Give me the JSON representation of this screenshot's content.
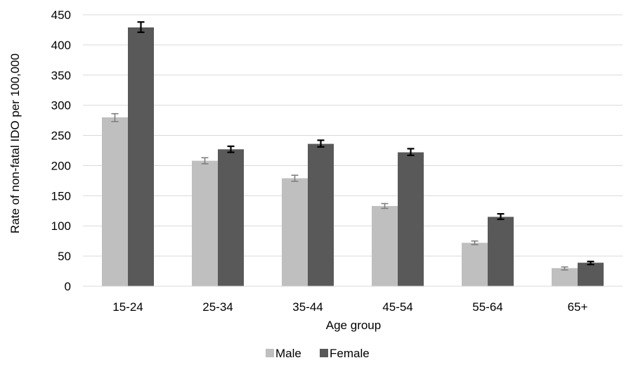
{
  "chart_data": {
    "type": "bar",
    "xlabel": "Age group",
    "ylabel": "Rate of non-fatal IDO per 100,000",
    "ylim": [
      0,
      450
    ],
    "yticks": [
      0,
      50,
      100,
      150,
      200,
      250,
      300,
      350,
      400,
      450
    ],
    "grid": true,
    "legend_position": "bottom",
    "categories": [
      "15-24",
      "25-34",
      "35-44",
      "45-54",
      "55-64",
      "65+"
    ],
    "series": [
      {
        "name": "Male",
        "color": "#bfbfbf",
        "error_color": "#7f7f7f",
        "values": [
          280,
          208,
          179,
          133,
          72,
          30
        ],
        "error_low": [
          273,
          203,
          174,
          129,
          69,
          27
        ],
        "error_high": [
          286,
          213,
          184,
          137,
          75,
          32
        ]
      },
      {
        "name": "Female",
        "color": "#595959",
        "error_color": "#000000",
        "values": [
          429,
          227,
          236,
          222,
          115,
          39
        ],
        "error_low": [
          421,
          222,
          231,
          217,
          111,
          36
        ],
        "error_high": [
          438,
          232,
          242,
          228,
          120,
          41
        ]
      }
    ]
  }
}
